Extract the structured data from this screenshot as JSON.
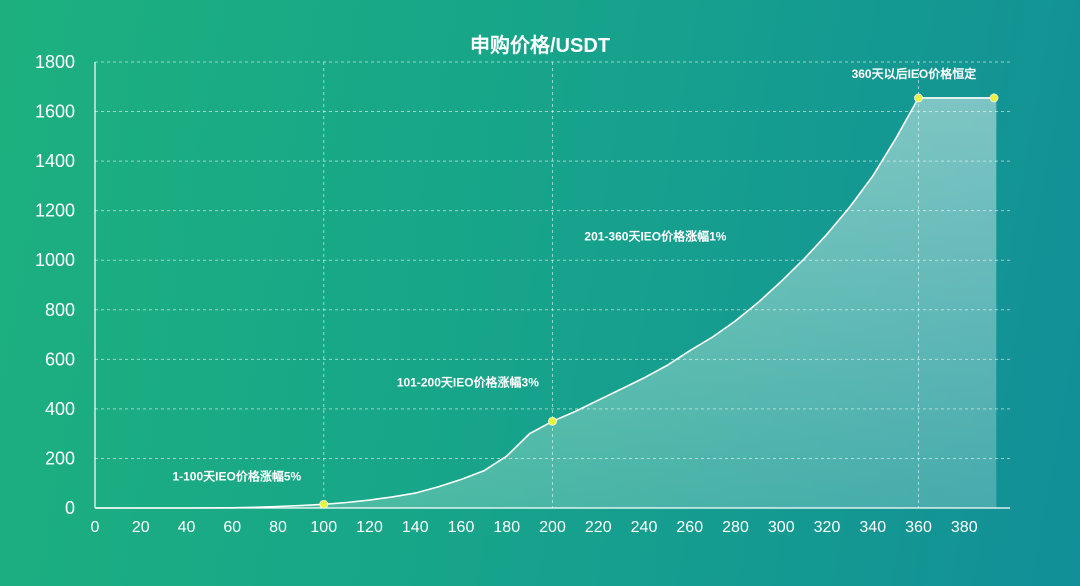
{
  "chart_data": {
    "type": "area",
    "title": "申购价格/USDT",
    "xlabel": "",
    "ylabel": "",
    "xlim": [
      0,
      400
    ],
    "ylim": [
      0,
      1800
    ],
    "x_ticks": [
      0,
      20,
      40,
      60,
      80,
      100,
      120,
      140,
      160,
      180,
      200,
      220,
      240,
      260,
      280,
      300,
      320,
      340,
      360,
      380
    ],
    "y_ticks": [
      0,
      200,
      400,
      600,
      800,
      1000,
      1200,
      1400,
      1600,
      1800
    ],
    "grid": {
      "horizontal": true,
      "vertical_dashed_at": [
        100,
        200,
        360
      ]
    },
    "series": [
      {
        "x": [
          0,
          20,
          40,
          60,
          70,
          80,
          90,
          100,
          110,
          120,
          130,
          140,
          150,
          160,
          170,
          180,
          190,
          200,
          210,
          220,
          230,
          240,
          250,
          260,
          270,
          280,
          290,
          300,
          310,
          320,
          330,
          340,
          350,
          360,
          370,
          380,
          394
        ],
        "values": [
          0,
          0,
          0,
          1,
          3,
          6,
          10,
          15,
          22,
          32,
          45,
          60,
          85,
          115,
          150,
          210,
          300,
          350,
          390,
          435,
          480,
          525,
          575,
          635,
          690,
          755,
          830,
          915,
          1005,
          1105,
          1215,
          1340,
          1490,
          1655,
          1655,
          1655,
          1655
        ]
      }
    ],
    "markers": [
      {
        "x": 100,
        "y": 15
      },
      {
        "x": 200,
        "y": 350
      },
      {
        "x": 360,
        "y": 1655
      },
      {
        "x": 393,
        "y": 1655
      }
    ],
    "annotations": [
      {
        "text": "1-100天IEO价格涨幅5%",
        "x": 62,
        "y": 110
      },
      {
        "text": "101-200天IEO价格涨幅3%",
        "x": 163,
        "y": 490
      },
      {
        "text": "201-360天IEO价格涨幅1%",
        "x": 245,
        "y": 1080
      },
      {
        "text": "360天以后IEO价格恒定",
        "x": 358,
        "y": 1735
      }
    ],
    "colors": {
      "line": "#ffffff",
      "marker": "#e6f53a",
      "area": "#ffffff"
    }
  }
}
